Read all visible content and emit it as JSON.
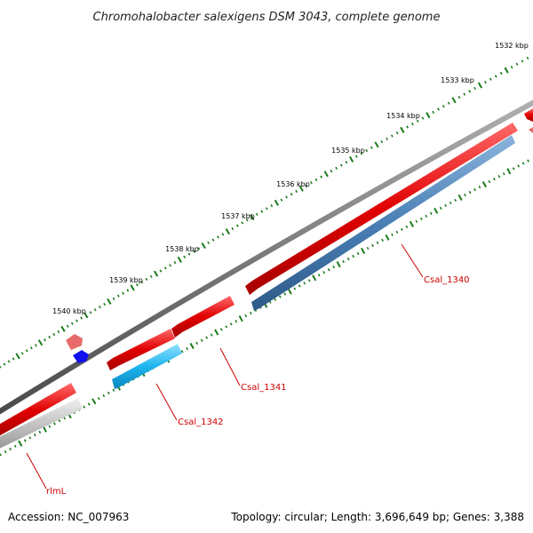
{
  "title": "Chromohalobacter salexigens DSM 3043, complete genome",
  "footer": {
    "accession": "Accession: NC_007963",
    "summary": "Topology: circular; Length: 3,696,649 bp; Genes: 3,388"
  },
  "scale_labels": [
    "1532 kbp",
    "1533 kbp",
    "1534 kbp",
    "1535 kbp",
    "1536 kbp",
    "1537 kbp",
    "1538 kbp",
    "1539 kbp",
    "1540 kbp"
  ],
  "gene_labels": [
    "Csal_1340",
    "Csal_1341",
    "Csal_1342",
    "rlmL"
  ],
  "colors": {
    "backbone": "#7a7a7a",
    "cds_forward": "#ee1111",
    "cds_reverse_steel": "#4a7fb5",
    "cds_reverse_cyan": "#1fb5ee",
    "cds_reverse_gray": "#c0c0c0",
    "ticks": "#1a7a1a",
    "label": "#cc0000",
    "small_pink": "#e86a6a",
    "small_blue": "#1111ee"
  }
}
